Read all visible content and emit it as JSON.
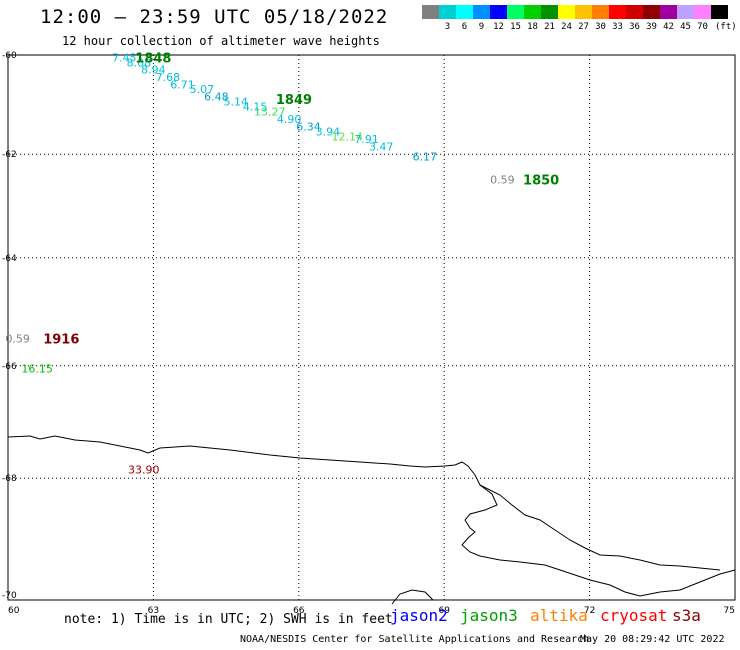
{
  "title": "12:00 — 23:59 UTC 05/18/2022",
  "subtitle": "12 hour collection of altimeter wave heights",
  "legend": {
    "unit": "(ft)",
    "items": [
      {
        "label": "",
        "color": "#808080"
      },
      {
        "label": "3",
        "color": "#00d0d0"
      },
      {
        "label": "6",
        "color": "#00ffff"
      },
      {
        "label": "9",
        "color": "#0090ff"
      },
      {
        "label": "12",
        "color": "#0000ff"
      },
      {
        "label": "15",
        "color": "#00ff60"
      },
      {
        "label": "18",
        "color": "#00d000"
      },
      {
        "label": "21",
        "color": "#009000"
      },
      {
        "label": "24",
        "color": "#ffff00"
      },
      {
        "label": "27",
        "color": "#ffc000"
      },
      {
        "label": "30",
        "color": "#ff8000"
      },
      {
        "label": "33",
        "color": "#ff0000"
      },
      {
        "label": "36",
        "color": "#d00000"
      },
      {
        "label": "39",
        "color": "#900000"
      },
      {
        "label": "42",
        "color": "#a000a0"
      },
      {
        "label": "45",
        "color": "#c0a0ff"
      },
      {
        "label": "70",
        "color": "#ff80ff"
      },
      {
        "label": "",
        "color": "#000000"
      }
    ]
  },
  "axes": {
    "lat_labels": [
      "-60",
      "-62",
      "-64",
      "-66",
      "-68",
      "-70"
    ],
    "lon_labels": [
      "60",
      "63",
      "66",
      "69",
      "72",
      "75"
    ]
  },
  "observations": [
    {
      "text": "7.45",
      "lon": 62.4,
      "lat": -60.05,
      "color": "#00c0e0"
    },
    {
      "text": "8.08",
      "lon": 62.7,
      "lat": -60.15,
      "color": "#00c0e0"
    },
    {
      "text": "8.94",
      "lon": 63.0,
      "lat": -60.3,
      "color": "#00c0e0"
    },
    {
      "text": "7.68",
      "lon": 63.3,
      "lat": -60.45,
      "color": "#00c0e0"
    },
    {
      "text": "6.71",
      "lon": 63.6,
      "lat": -60.6,
      "color": "#00c0e0"
    },
    {
      "text": "5.07",
      "lon": 64.0,
      "lat": -60.7,
      "color": "#00c0e0"
    },
    {
      "text": "6.48",
      "lon": 64.3,
      "lat": -60.85,
      "color": "#00a0d0"
    },
    {
      "text": "5.14",
      "lon": 64.7,
      "lat": -60.95,
      "color": "#00c0e0"
    },
    {
      "text": "4.15",
      "lon": 65.1,
      "lat": -61.05,
      "color": "#00c0e0"
    },
    {
      "text": "13.27",
      "lon": 65.4,
      "lat": -61.15,
      "color": "#40e060"
    },
    {
      "text": "4.90",
      "lon": 65.8,
      "lat": -61.3,
      "color": "#00c0e0"
    },
    {
      "text": "6.34",
      "lon": 66.2,
      "lat": -61.45,
      "color": "#00a0d0"
    },
    {
      "text": "3.94",
      "lon": 66.6,
      "lat": -61.55,
      "color": "#00c0e0"
    },
    {
      "text": "12.14",
      "lon": 67.0,
      "lat": -61.65,
      "color": "#60e040"
    },
    {
      "text": "7.91",
      "lon": 67.4,
      "lat": -61.7,
      "color": "#00c0e0"
    },
    {
      "text": "3.47",
      "lon": 67.7,
      "lat": -61.85,
      "color": "#00c0e0"
    },
    {
      "text": "6.17",
      "lon": 68.6,
      "lat": -62.05,
      "color": "#00a0d0"
    },
    {
      "text": "0.59",
      "lon": 70.2,
      "lat": -62.5,
      "color": "#808080"
    },
    {
      "text": "0.59",
      "lon": 60.2,
      "lat": -65.5,
      "color": "#808080"
    },
    {
      "text": "16.15",
      "lon": 60.6,
      "lat": -66.05,
      "color": "#00c000"
    },
    {
      "text": "33.90",
      "lon": 62.8,
      "lat": -67.85,
      "color": "#a00000"
    }
  ],
  "passes": [
    {
      "text": "1848",
      "lon": 63.0,
      "lat": -60.05,
      "color": "#008000"
    },
    {
      "text": "1849",
      "lon": 65.9,
      "lat": -60.9,
      "color": "#008000"
    },
    {
      "text": "1850",
      "lon": 71.0,
      "lat": -62.5,
      "color": "#008000"
    },
    {
      "text": "1916",
      "lon": 61.1,
      "lat": -65.5,
      "color": "#800000"
    }
  ],
  "footer": {
    "note": "note: 1) Time is in UTC; 2) SWH is in feet",
    "satellites": [
      {
        "name": "jason2",
        "color": "#0000ff"
      },
      {
        "name": "jason3",
        "color": "#00a000"
      },
      {
        "name": "altika",
        "color": "#ff8000"
      },
      {
        "name": "cryosat",
        "color": "#ff0000"
      },
      {
        "name": "s3a",
        "color": "#900000"
      }
    ],
    "credit": "NOAA/NESDIS Center for Satellite Applications and Research",
    "timestamp": "May 20 08:29:42 UTC 2022"
  }
}
